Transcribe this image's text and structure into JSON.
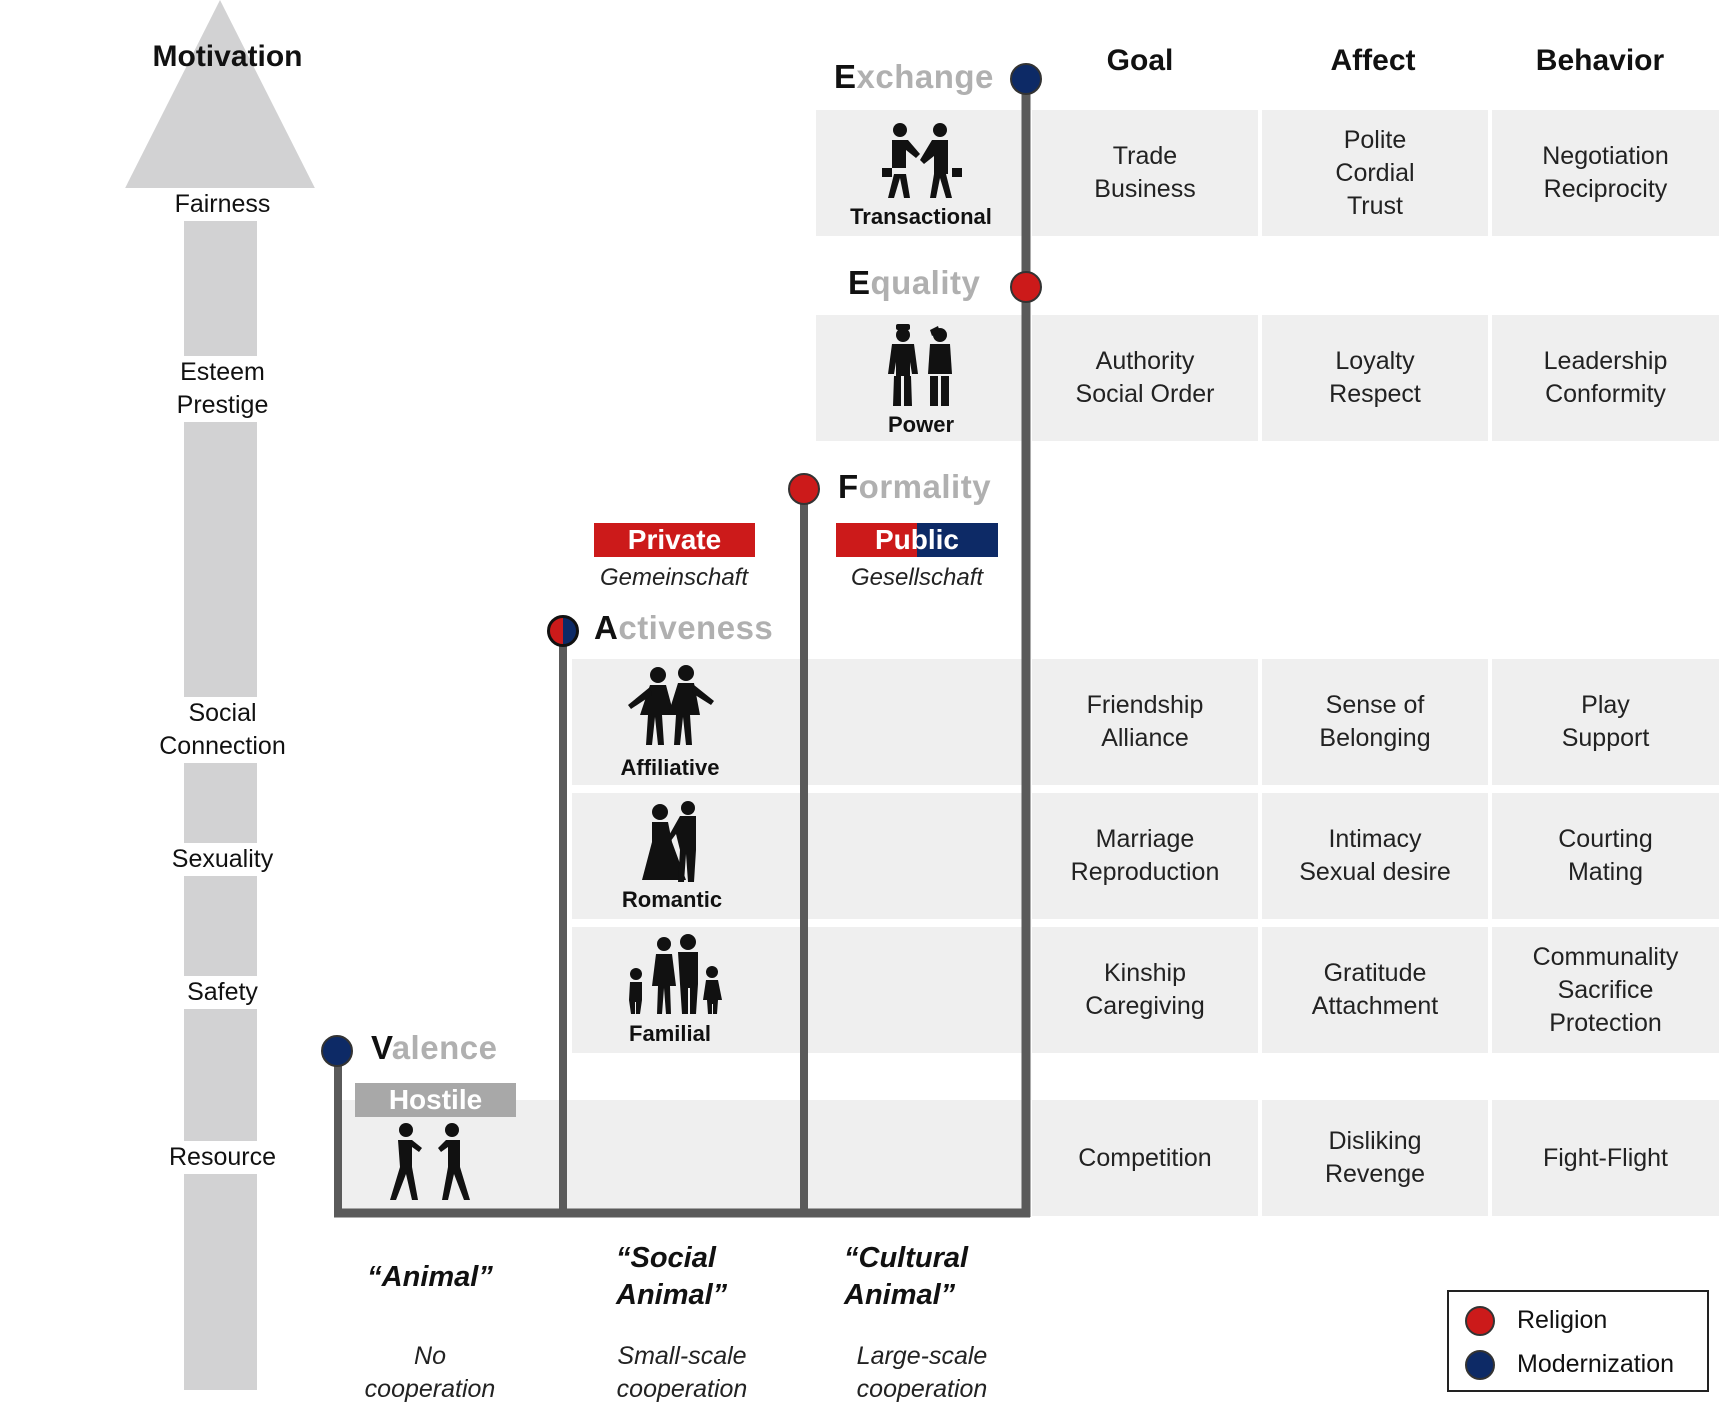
{
  "colors": {
    "religion": "#cc1a1a",
    "modernization": "#0d2a66",
    "arrow": "#d2d2d3",
    "cell": "#efefef",
    "stair": "#5a5a5a",
    "hostile": "#a8a8a8"
  },
  "motivation": {
    "title": "Motivation",
    "levels": [
      "Fairness",
      "Esteem\nPrestige",
      "Social\nConnection",
      "Sexuality",
      "Safety",
      "Resource"
    ]
  },
  "columns": {
    "goal": "Goal",
    "affect": "Affect",
    "behavior": "Behavior"
  },
  "stages": {
    "exchange": {
      "initial": "E",
      "rest": "xchange"
    },
    "equality": {
      "initial": "E",
      "rest": "quality"
    },
    "formality": {
      "initial": "F",
      "rest": "ormality"
    },
    "activeness": {
      "initial": "A",
      "rest": "ctiveness"
    },
    "valence": {
      "initial": "V",
      "rest": "alence"
    }
  },
  "badges": {
    "private": "Private",
    "private_sub": "Gemeinschaft",
    "public": "Public",
    "public_sub": "Gesellschaft",
    "hostile": "Hostile"
  },
  "rows": [
    {
      "icon": "handshake-icon",
      "label": "Transactional",
      "goal": "Trade\nBusiness",
      "affect": "Polite\nCordial\nTrust",
      "behavior": "Negotiation\nReciprocity"
    },
    {
      "icon": "salute-icon",
      "label": "Power",
      "goal": "Authority\nSocial Order",
      "affect": "Loyalty\nRespect",
      "behavior": "Leadership\nConformity"
    },
    {
      "icon": "friends-icon",
      "label": "Affiliative",
      "goal": "Friendship\nAlliance",
      "affect": "Sense of\nBelonging",
      "behavior": "Play\nSupport"
    },
    {
      "icon": "couple-icon",
      "label": "Romantic",
      "goal": "Marriage\nReproduction",
      "affect": "Intimacy\nSexual desire",
      "behavior": "Courting\nMating"
    },
    {
      "icon": "family-icon",
      "label": "Familial",
      "goal": "Kinship\nCaregiving",
      "affect": "Gratitude\nAttachment",
      "behavior": "Communality\nSacrifice\nProtection"
    },
    {
      "icon": "fighters-icon",
      "label": "",
      "goal": "Competition",
      "affect": "Disliking\nRevenge",
      "behavior": "Fight-Flight"
    }
  ],
  "animals": [
    {
      "title": "“Animal”",
      "coop": "No\ncooperation"
    },
    {
      "title": "“Social\n  Animal”",
      "coop": "Small-scale\ncooperation"
    },
    {
      "title": "“Cultural\n  Animal”",
      "coop": "Large-scale\ncooperation"
    }
  ],
  "legend": {
    "religion": "Religion",
    "modernization": "Modernization"
  }
}
